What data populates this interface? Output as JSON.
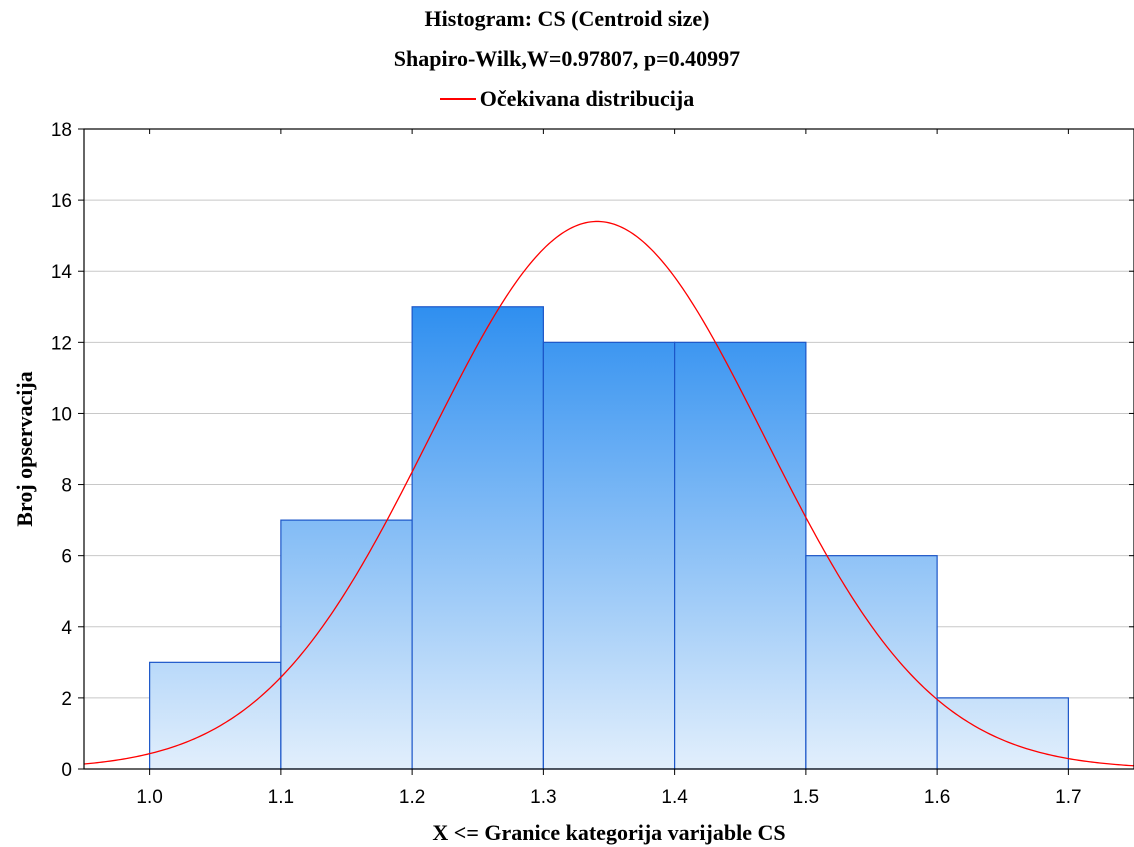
{
  "chart_data": {
    "type": "bar",
    "title": "Histogram: CS (Centroid size)",
    "subtitle": "Shapiro-Wilk,W=0.97807, p=0.40997",
    "legend": [
      "Očekivana distribucija"
    ],
    "legend_placement": "top-center",
    "xlabel": "X <= Granice kategorija varijable CS",
    "ylabel": "Broj opservacija",
    "bins": [
      {
        "from": 1.0,
        "to": 1.1,
        "count": 3
      },
      {
        "from": 1.1,
        "to": 1.2,
        "count": 7
      },
      {
        "from": 1.2,
        "to": 1.3,
        "count": 13
      },
      {
        "from": 1.3,
        "to": 1.4,
        "count": 12
      },
      {
        "from": 1.4,
        "to": 1.5,
        "count": 12
      },
      {
        "from": 1.5,
        "to": 1.6,
        "count": 6
      },
      {
        "from": 1.6,
        "to": 1.7,
        "count": 2
      }
    ],
    "xlim": [
      0.95,
      1.75
    ],
    "ylim": [
      0,
      18
    ],
    "x_ticks": [
      "1.0",
      "1.1",
      "1.2",
      "1.3",
      "1.4",
      "1.5",
      "1.6",
      "1.7"
    ],
    "y_ticks": [
      "0",
      "2",
      "4",
      "6",
      "8",
      "10",
      "12",
      "14",
      "16",
      "18"
    ],
    "grid": "horizontal",
    "expected_curve": {
      "name": "Očekivana distribucija",
      "type": "normal",
      "mean": 1.341,
      "sd": 0.1275,
      "peak": 15.4,
      "color": "#ff0000"
    },
    "colors": {
      "bar_top": "#2f8ff0",
      "bar_bottom": "#e2effc",
      "bar_edge": "#1c56c8",
      "grid": "#c8c8c8"
    }
  }
}
